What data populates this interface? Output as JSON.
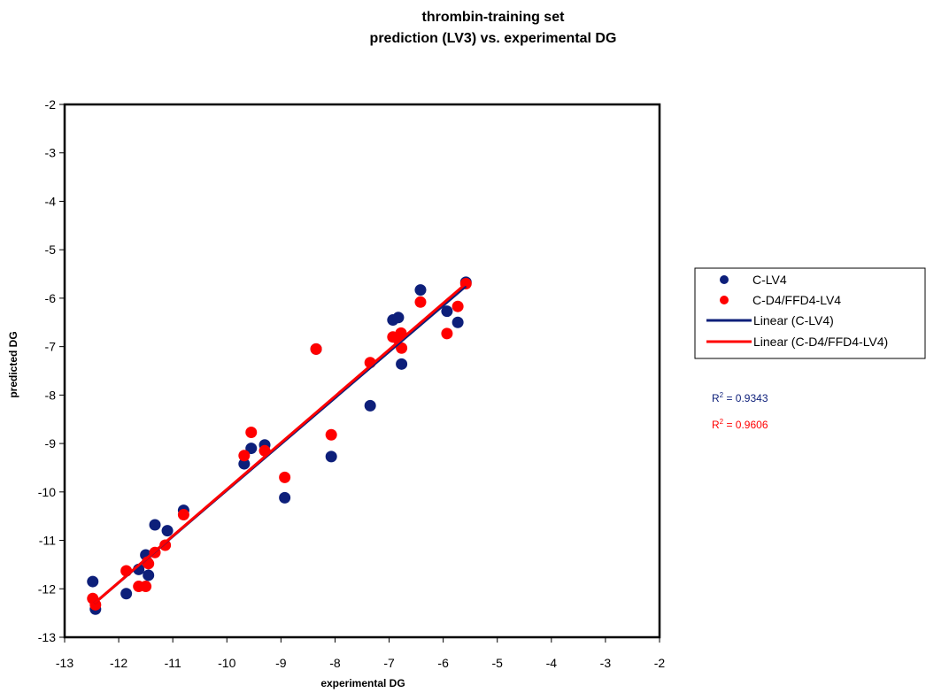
{
  "chart_data": {
    "type": "scatter",
    "title_lines": [
      "thrombin-training set",
      "prediction (LV3)  vs. experimental DG"
    ],
    "xlabel": "experimental DG",
    "ylabel": "predicted DG",
    "xlim": [
      -13,
      -2
    ],
    "ylim": [
      -13,
      -2
    ],
    "xticks": [
      -13,
      -12,
      -11,
      -10,
      -9,
      -8,
      -7,
      -6,
      -5,
      -4,
      -3,
      -2
    ],
    "yticks": [
      -13,
      -12,
      -11,
      -10,
      -9,
      -8,
      -7,
      -6,
      -5,
      -4,
      -3,
      -2
    ],
    "grid": false,
    "legend_position": "right",
    "legend": [
      {
        "label": "C-LV4",
        "kind": "marker",
        "color": "#0d1f7a"
      },
      {
        "label": "C-D4/FFD4-LV4",
        "kind": "marker",
        "color": "#ff0000"
      },
      {
        "label": "Linear (C-LV4)",
        "kind": "line",
        "color": "#0d1f7a"
      },
      {
        "label": "Linear (C-D4/FFD4-LV4)",
        "kind": "line",
        "color": "#ff0000"
      }
    ],
    "r2_labels": [
      {
        "prefix": "R",
        "sup": "2",
        "value": " = 0.9343",
        "color": "#0d1f7a"
      },
      {
        "prefix": "R",
        "sup": "2",
        "value": " = 0.9606",
        "color": "#ff0000"
      }
    ],
    "series": [
      {
        "name": "C-LV4",
        "color": "#0d1f7a",
        "points": [
          [
            -12.48,
            -11.85
          ],
          [
            -12.43,
            -12.42
          ],
          [
            -11.86,
            -12.1
          ],
          [
            -11.63,
            -11.6
          ],
          [
            -11.5,
            -11.3
          ],
          [
            -11.45,
            -11.72
          ],
          [
            -11.33,
            -10.68
          ],
          [
            -11.1,
            -10.8
          ],
          [
            -10.8,
            -10.38
          ],
          [
            -9.68,
            -9.42
          ],
          [
            -9.55,
            -9.1
          ],
          [
            -9.3,
            -9.03
          ],
          [
            -8.93,
            -10.12
          ],
          [
            -8.35,
            -7.05
          ],
          [
            -8.07,
            -9.27
          ],
          [
            -7.35,
            -8.22
          ],
          [
            -6.93,
            -6.45
          ],
          [
            -6.83,
            -6.4
          ],
          [
            -6.77,
            -7.36
          ],
          [
            -6.42,
            -5.83
          ],
          [
            -5.93,
            -6.27
          ],
          [
            -5.73,
            -6.5
          ],
          [
            -5.58,
            -5.67
          ]
        ],
        "trend": {
          "x": [
            -12.45,
            -5.58
          ],
          "y": [
            -12.3,
            -5.75
          ]
        }
      },
      {
        "name": "C-D4/FFD4-LV4",
        "color": "#ff0000",
        "points": [
          [
            -12.48,
            -12.2
          ],
          [
            -12.43,
            -12.33
          ],
          [
            -11.86,
            -11.63
          ],
          [
            -11.63,
            -11.95
          ],
          [
            -11.5,
            -11.95
          ],
          [
            -11.47,
            -11.45
          ],
          [
            -11.45,
            -11.48
          ],
          [
            -11.33,
            -11.25
          ],
          [
            -11.14,
            -11.1
          ],
          [
            -10.8,
            -10.47
          ],
          [
            -9.68,
            -9.25
          ],
          [
            -9.55,
            -8.77
          ],
          [
            -9.3,
            -9.15
          ],
          [
            -8.93,
            -9.7
          ],
          [
            -8.35,
            -7.05
          ],
          [
            -8.07,
            -8.82
          ],
          [
            -7.35,
            -7.33
          ],
          [
            -6.93,
            -6.8
          ],
          [
            -6.85,
            -6.83
          ],
          [
            -6.78,
            -6.72
          ],
          [
            -6.77,
            -7.03
          ],
          [
            -6.42,
            -6.08
          ],
          [
            -5.93,
            -6.73
          ],
          [
            -5.73,
            -6.17
          ],
          [
            -5.58,
            -5.7
          ]
        ],
        "trend": {
          "x": [
            -12.45,
            -5.58
          ],
          "y": [
            -12.3,
            -5.7
          ]
        }
      }
    ]
  }
}
